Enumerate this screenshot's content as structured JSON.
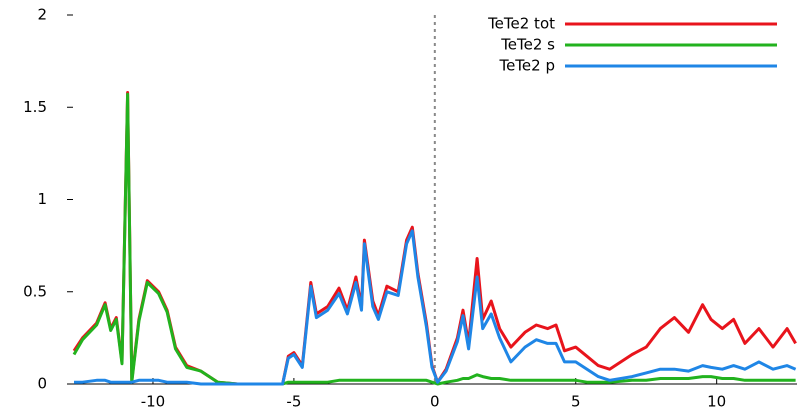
{
  "chart_data": {
    "type": "line",
    "x": [
      -12.8,
      -12.5,
      -12.0,
      -11.7,
      -11.5,
      -11.3,
      -11.1,
      -10.9,
      -10.75,
      -10.5,
      -10.2,
      -9.8,
      -9.5,
      -9.2,
      -8.8,
      -8.3,
      -7.7,
      -7.0,
      -6.0,
      -5.4,
      -5.2,
      -5.0,
      -4.7,
      -4.4,
      -4.2,
      -3.8,
      -3.4,
      -3.1,
      -2.8,
      -2.6,
      -2.5,
      -2.2,
      -2.0,
      -1.7,
      -1.3,
      -1.0,
      -0.8,
      -0.6,
      -0.3,
      -0.1,
      0.1,
      0.4,
      0.8,
      1.0,
      1.2,
      1.5,
      1.7,
      2.0,
      2.3,
      2.7,
      3.2,
      3.6,
      4.0,
      4.3,
      4.6,
      5.0,
      5.4,
      5.8,
      6.2,
      7.0,
      7.5,
      8.0,
      8.5,
      9.0,
      9.5,
      9.8,
      10.2,
      10.6,
      11.0,
      11.5,
      12.0,
      12.5,
      12.8
    ],
    "series": [
      {
        "name": "TeTe2 tot",
        "color": "#e8141c",
        "values": [
          0.18,
          0.25,
          0.33,
          0.44,
          0.3,
          0.36,
          0.12,
          1.58,
          0.02,
          0.35,
          0.56,
          0.5,
          0.4,
          0.2,
          0.1,
          0.07,
          0.01,
          0,
          0,
          0,
          0.15,
          0.17,
          0.1,
          0.55,
          0.38,
          0.42,
          0.52,
          0.4,
          0.58,
          0.42,
          0.78,
          0.45,
          0.37,
          0.53,
          0.5,
          0.78,
          0.85,
          0.6,
          0.33,
          0.1,
          0.01,
          0.08,
          0.25,
          0.4,
          0.22,
          0.68,
          0.35,
          0.45,
          0.3,
          0.2,
          0.28,
          0.32,
          0.3,
          0.32,
          0.18,
          0.2,
          0.15,
          0.1,
          0.08,
          0.16,
          0.2,
          0.3,
          0.36,
          0.28,
          0.43,
          0.35,
          0.3,
          0.35,
          0.22,
          0.3,
          0.2,
          0.3,
          0.22
        ]
      },
      {
        "name": "TeTe2 s",
        "color": "#22b21e",
        "values": [
          0.16,
          0.24,
          0.32,
          0.43,
          0.29,
          0.35,
          0.11,
          1.57,
          0.01,
          0.34,
          0.55,
          0.49,
          0.39,
          0.19,
          0.09,
          0.07,
          0.01,
          0,
          0,
          0,
          0.01,
          0.01,
          0.01,
          0.01,
          0.01,
          0.01,
          0.02,
          0.02,
          0.02,
          0.02,
          0.02,
          0.02,
          0.02,
          0.02,
          0.02,
          0.02,
          0.02,
          0.02,
          0.02,
          0.01,
          0,
          0.01,
          0.02,
          0.03,
          0.03,
          0.05,
          0.04,
          0.03,
          0.03,
          0.02,
          0.02,
          0.02,
          0.02,
          0.02,
          0.02,
          0.02,
          0.01,
          0.01,
          0.01,
          0.02,
          0.02,
          0.03,
          0.03,
          0.03,
          0.04,
          0.04,
          0.03,
          0.03,
          0.02,
          0.02,
          0.02,
          0.02,
          0.02
        ]
      },
      {
        "name": "TeTe2 p",
        "color": "#1f86e6",
        "values": [
          0.01,
          0.01,
          0.02,
          0.02,
          0.01,
          0.01,
          0.01,
          0.01,
          0.01,
          0.02,
          0.02,
          0.02,
          0.01,
          0.01,
          0.01,
          0,
          0,
          0,
          0,
          0,
          0.14,
          0.16,
          0.09,
          0.53,
          0.36,
          0.4,
          0.49,
          0.38,
          0.55,
          0.4,
          0.76,
          0.42,
          0.35,
          0.5,
          0.48,
          0.76,
          0.83,
          0.58,
          0.31,
          0.09,
          0.01,
          0.07,
          0.23,
          0.37,
          0.19,
          0.58,
          0.3,
          0.38,
          0.25,
          0.12,
          0.2,
          0.24,
          0.22,
          0.22,
          0.12,
          0.12,
          0.08,
          0.04,
          0.02,
          0.04,
          0.06,
          0.08,
          0.08,
          0.07,
          0.1,
          0.09,
          0.08,
          0.1,
          0.08,
          0.12,
          0.08,
          0.1,
          0.08
        ]
      }
    ],
    "xlim": [
      -13.05,
      12.85
    ],
    "ylim": [
      0,
      2
    ],
    "xticks": [
      -10,
      -5,
      0,
      5,
      10
    ],
    "yticks": [
      0,
      0.5,
      1,
      1.5,
      2
    ],
    "zero_line": true,
    "legend": "top-right"
  }
}
